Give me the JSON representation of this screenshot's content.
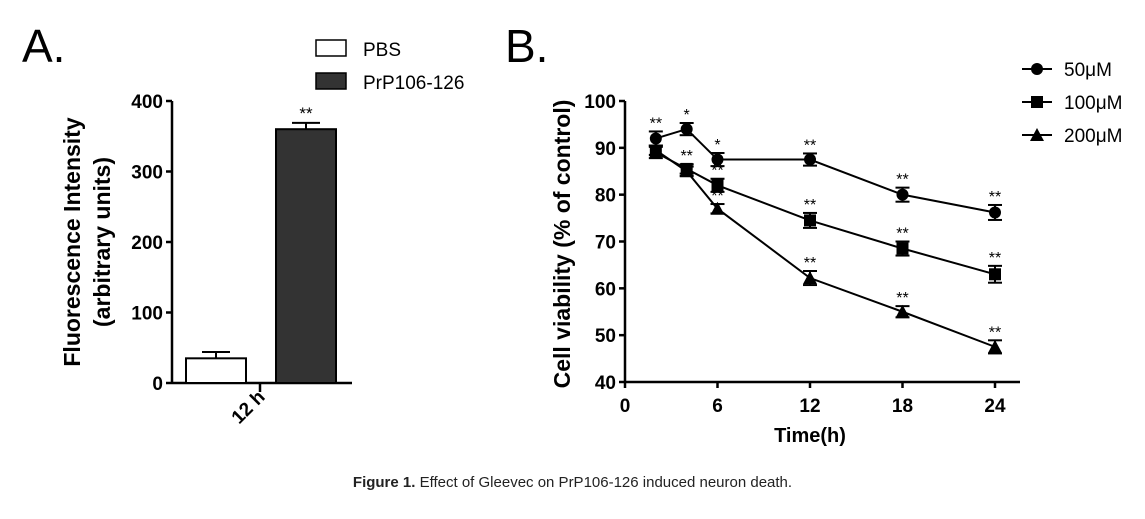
{
  "caption": {
    "label": "Figure 1.",
    "text": " Effect of Gleevec on PrP106-126 induced neuron death."
  },
  "chart_data": [
    {
      "panel": "A.",
      "type": "bar",
      "categories": [
        "12 h"
      ],
      "ylabel": "Fluorescence Intensity",
      "ylabel2": "(arbitrary units)",
      "xlabel": "",
      "ylim": [
        0,
        400
      ],
      "yticks": [
        "0",
        "100",
        "200",
        "300",
        "400"
      ],
      "legend": "top-right",
      "series": [
        {
          "name": "PBS",
          "values": [
            35
          ],
          "errors": [
            9
          ],
          "fill": "#ffffff",
          "annotations": [
            ""
          ]
        },
        {
          "name": "PrP106-126",
          "values": [
            360
          ],
          "errors": [
            9
          ],
          "fill": "#333333",
          "annotations": [
            "**"
          ]
        }
      ]
    },
    {
      "panel": "B.",
      "type": "line",
      "x": [
        2,
        4,
        6,
        12,
        18,
        24
      ],
      "xlabel": "Time(h)",
      "ylabel": "Cell viability (% of control)",
      "xlim": [
        0,
        26
      ],
      "ylim": [
        40,
        100
      ],
      "xticks": [
        "0",
        "6",
        "12",
        "18",
        "24"
      ],
      "yticks": [
        "40",
        "50",
        "60",
        "70",
        "80",
        "90",
        "100"
      ],
      "legend": "top-right",
      "series": [
        {
          "name": "50μM",
          "marker": "circle",
          "values": [
            92,
            94,
            87.5,
            87.5,
            80,
            76.2
          ],
          "errors": [
            1.5,
            1.3,
            1.4,
            1.3,
            1.5,
            1.6
          ],
          "annotations": [
            "**",
            "*",
            "*",
            "**",
            "**",
            "**"
          ]
        },
        {
          "name": "100μM",
          "marker": "square",
          "values": [
            89,
            85.5,
            82,
            74.5,
            68.5,
            63
          ],
          "errors": [
            1.2,
            1.0,
            1.4,
            1.6,
            1.5,
            1.8
          ],
          "annotations": [
            "",
            "**",
            "**",
            "**",
            "**",
            "**"
          ]
        },
        {
          "name": "200μM",
          "marker": "triangle",
          "values": [
            89.5,
            85,
            77,
            62.2,
            55,
            47.5
          ],
          "errors": [
            1.0,
            1.0,
            1.0,
            1.5,
            1.2,
            1.4
          ],
          "annotations": [
            "",
            "",
            "**",
            "**",
            "**",
            "**"
          ]
        }
      ]
    }
  ]
}
